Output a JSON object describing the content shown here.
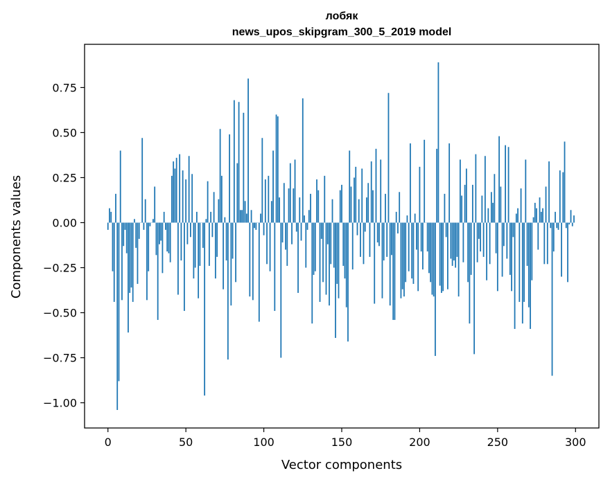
{
  "chart_data": {
    "type": "bar",
    "title_line1": "лобяк",
    "title_line2": "news_upos_skipgram_300_5_2019 model",
    "xlabel": "Vector components",
    "ylabel": "Components values",
    "xlim": [
      -15,
      315
    ],
    "ylim": [
      -1.14,
      0.99
    ],
    "x_ticks": [
      0,
      50,
      100,
      150,
      200,
      250,
      300
    ],
    "x_tick_labels": [
      "0",
      "50",
      "100",
      "150",
      "200",
      "250",
      "300"
    ],
    "y_ticks": [
      -1.0,
      -0.75,
      -0.5,
      -0.25,
      0.0,
      0.25,
      0.5,
      0.75
    ],
    "y_tick_labels": [
      "−1.00",
      "−0.75",
      "−0.50",
      "−0.25",
      "0.00",
      "0.25",
      "0.50",
      "0.75"
    ],
    "bar_color": "#1f77b4",
    "grid": false,
    "values": [
      -0.04,
      0.08,
      0.06,
      -0.27,
      -0.44,
      0.16,
      -1.04,
      -0.88,
      0.4,
      -0.43,
      -0.13,
      -0.04,
      -0.17,
      -0.61,
      -0.39,
      -0.36,
      -0.44,
      0.02,
      -0.14,
      -0.34,
      -0.09,
      0.0,
      0.47,
      -0.04,
      0.13,
      -0.43,
      -0.27,
      -0.02,
      0.0,
      0.02,
      0.2,
      -0.18,
      -0.54,
      -0.12,
      -0.1,
      -0.28,
      0.06,
      -0.04,
      -0.16,
      -0.17,
      -0.22,
      0.26,
      0.34,
      0.3,
      0.36,
      -0.4,
      0.38,
      -0.21,
      0.29,
      -0.49,
      0.24,
      -0.12,
      0.37,
      -0.08,
      0.27,
      -0.31,
      -0.25,
      0.06,
      -0.42,
      -0.24,
      0.0,
      -0.14,
      -0.96,
      0.02,
      0.23,
      -0.24,
      0.06,
      -0.08,
      0.17,
      -0.31,
      -0.19,
      0.13,
      0.52,
      0.26,
      -0.37,
      0.03,
      -0.21,
      -0.76,
      0.49,
      -0.46,
      -0.2,
      0.68,
      -0.33,
      0.33,
      0.67,
      0.07,
      0.07,
      0.61,
      0.12,
      0.05,
      0.8,
      -0.41,
      0.07,
      -0.43,
      -0.03,
      -0.04,
      0.0,
      -0.55,
      0.05,
      0.47,
      -0.07,
      0.24,
      -0.23,
      0.26,
      -0.27,
      0.12,
      0.4,
      -0.49,
      0.6,
      0.59,
      0.14,
      -0.75,
      -0.11,
      0.22,
      -0.15,
      -0.24,
      0.19,
      0.33,
      -0.12,
      0.19,
      0.35,
      -0.05,
      -0.39,
      0.14,
      -0.1,
      0.69,
      0.04,
      -0.25,
      -0.04,
      0.07,
      0.16,
      -0.56,
      -0.29,
      -0.27,
      0.24,
      0.18,
      -0.44,
      -0.09,
      -0.33,
      0.26,
      -0.4,
      -0.12,
      -0.46,
      -0.23,
      0.13,
      -0.25,
      -0.64,
      -0.34,
      -0.42,
      0.18,
      0.21,
      -0.24,
      -0.31,
      -0.47,
      -0.66,
      0.4,
      0.2,
      -0.26,
      0.25,
      0.31,
      -0.07,
      0.13,
      -0.19,
      0.3,
      -0.23,
      -0.05,
      0.14,
      0.22,
      -0.19,
      0.34,
      0.18,
      -0.45,
      0.41,
      -0.11,
      -0.13,
      0.35,
      -0.42,
      -0.21,
      0.16,
      -0.19,
      0.72,
      -0.46,
      -0.18,
      -0.54,
      -0.54,
      0.06,
      -0.06,
      0.17,
      -0.42,
      -0.37,
      -0.41,
      -0.33,
      0.04,
      -0.27,
      0.44,
      -0.31,
      -0.34,
      0.05,
      -0.15,
      -0.38,
      0.31,
      -0.16,
      -0.26,
      0.46,
      0.0,
      -0.16,
      -0.28,
      -0.33,
      -0.4,
      -0.41,
      -0.74,
      0.41,
      0.89,
      -0.35,
      -0.39,
      -0.38,
      0.16,
      -0.08,
      -0.37,
      0.44,
      -0.2,
      -0.24,
      -0.21,
      -0.25,
      -0.19,
      -0.41,
      0.35,
      0.15,
      -0.22,
      0.21,
      0.3,
      -0.33,
      -0.56,
      -0.29,
      0.21,
      -0.73,
      0.38,
      -0.22,
      -0.09,
      -0.16,
      0.15,
      -0.19,
      0.37,
      -0.32,
      0.08,
      -0.23,
      0.17,
      0.11,
      0.27,
      -0.17,
      -0.38,
      0.48,
      0.2,
      -0.3,
      -0.13,
      0.43,
      -0.2,
      0.42,
      -0.29,
      -0.38,
      -0.08,
      -0.59,
      0.05,
      0.08,
      -0.44,
      0.19,
      -0.56,
      -0.44,
      0.35,
      -0.24,
      -0.47,
      -0.59,
      -0.32,
      0.03,
      0.11,
      0.08,
      -0.15,
      0.14,
      0.06,
      0.08,
      -0.23,
      0.2,
      -0.23,
      0.34,
      -0.03,
      -0.85,
      -0.16,
      0.06,
      -0.03,
      -0.04,
      0.29,
      -0.3,
      0.28,
      0.45,
      -0.03,
      -0.33,
      -0.01,
      0.07,
      -0.02,
      0.04
    ]
  }
}
